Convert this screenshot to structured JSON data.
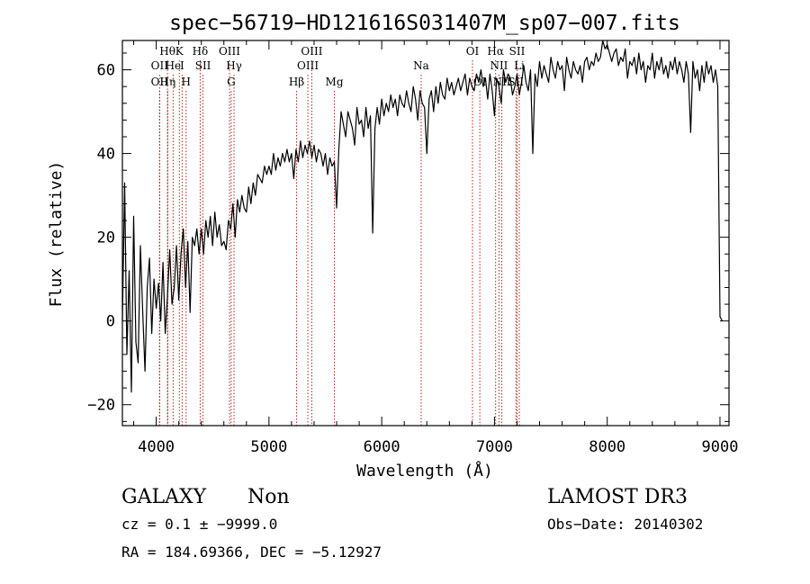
{
  "chart_data": {
    "type": "line",
    "title": "spec−56719−HD121616S031407M_sp07−007.fits",
    "xlabel": "Wavelength (Å)",
    "ylabel": "Flux (relative)",
    "xlim": [
      3700,
      9080
    ],
    "ylim": [
      -25,
      67
    ],
    "x_ticks": [
      4000,
      5000,
      6000,
      7000,
      8000,
      9000
    ],
    "y_ticks": [
      -20,
      0,
      20,
      40,
      60
    ],
    "series": [
      {
        "color": "#000000",
        "x": [
          3700,
          3720,
          3740,
          3760,
          3780,
          3800,
          3820,
          3840,
          3860,
          3880,
          3900,
          3920,
          3940,
          3960,
          3980,
          4000,
          4020,
          4040,
          4060,
          4080,
          4100,
          4120,
          4140,
          4160,
          4180,
          4200,
          4220,
          4240,
          4260,
          4280,
          4300,
          4320,
          4340,
          4360,
          4380,
          4400,
          4420,
          4440,
          4460,
          4480,
          4500,
          4520,
          4540,
          4560,
          4580,
          4600,
          4620,
          4640,
          4660,
          4680,
          4700,
          4720,
          4740,
          4760,
          4780,
          4800,
          4820,
          4840,
          4860,
          4880,
          4900,
          4920,
          4940,
          4960,
          4980,
          5000,
          5020,
          5040,
          5060,
          5080,
          5100,
          5120,
          5140,
          5160,
          5180,
          5200,
          5220,
          5240,
          5260,
          5280,
          5300,
          5320,
          5340,
          5360,
          5380,
          5400,
          5420,
          5440,
          5460,
          5480,
          5500,
          5520,
          5540,
          5560,
          5580,
          5600,
          5620,
          5640,
          5660,
          5680,
          5700,
          5720,
          5740,
          5760,
          5780,
          5800,
          5820,
          5840,
          5860,
          5880,
          5900,
          5920,
          5940,
          5960,
          5980,
          6000,
          6020,
          6040,
          6060,
          6080,
          6100,
          6120,
          6140,
          6160,
          6180,
          6200,
          6220,
          6240,
          6260,
          6280,
          6300,
          6320,
          6340,
          6360,
          6380,
          6400,
          6420,
          6440,
          6460,
          6480,
          6500,
          6520,
          6540,
          6560,
          6580,
          6600,
          6620,
          6640,
          6660,
          6680,
          6700,
          6720,
          6740,
          6760,
          6780,
          6800,
          6820,
          6840,
          6860,
          6880,
          6900,
          6920,
          6940,
          6960,
          6980,
          7000,
          7020,
          7040,
          7060,
          7080,
          7100,
          7120,
          7140,
          7160,
          7180,
          7200,
          7220,
          7240,
          7260,
          7280,
          7300,
          7320,
          7340,
          7360,
          7380,
          7400,
          7420,
          7440,
          7460,
          7480,
          7500,
          7520,
          7540,
          7560,
          7580,
          7600,
          7620,
          7640,
          7660,
          7680,
          7700,
          7720,
          7740,
          7760,
          7780,
          7800,
          7820,
          7840,
          7860,
          7880,
          7900,
          7920,
          7940,
          7960,
          7980,
          8000,
          8020,
          8040,
          8060,
          8080,
          8100,
          8120,
          8140,
          8160,
          8180,
          8200,
          8220,
          8240,
          8260,
          8280,
          8300,
          8320,
          8340,
          8360,
          8380,
          8400,
          8420,
          8440,
          8460,
          8480,
          8500,
          8520,
          8540,
          8560,
          8580,
          8600,
          8620,
          8640,
          8660,
          8680,
          8700,
          8720,
          8740,
          8760,
          8780,
          8800,
          8820,
          8840,
          8860,
          8880,
          8900,
          8920,
          8940,
          8960,
          8980,
          9000,
          9020
        ],
        "y": [
          0,
          33,
          -8,
          12,
          -17,
          25,
          -5,
          -10,
          18,
          2,
          -12,
          8,
          15,
          -3,
          10,
          3,
          9,
          0,
          14,
          -3,
          6,
          17,
          4,
          8,
          18,
          5,
          16,
          22,
          8,
          19,
          2,
          20,
          18,
          22,
          16,
          22,
          16,
          24,
          20,
          25,
          18,
          26,
          20,
          23,
          18,
          19,
          17,
          24,
          22,
          28,
          20,
          29,
          26,
          30,
          27,
          26,
          32,
          28,
          33,
          30,
          35,
          34,
          33,
          37,
          35,
          37,
          35,
          40,
          36,
          39,
          37,
          40,
          38,
          41,
          38,
          40,
          34,
          41,
          38,
          43,
          39,
          42,
          40,
          43,
          39,
          42,
          38,
          41,
          40,
          37,
          40,
          35,
          39,
          37,
          38,
          27,
          41,
          50,
          47,
          44,
          50,
          48,
          46,
          42,
          51,
          47,
          48,
          44,
          51,
          46,
          49,
          21,
          46,
          51,
          47,
          53,
          49,
          52,
          50,
          54,
          51,
          53,
          49,
          54,
          52,
          51,
          55,
          52,
          50,
          56,
          53,
          48,
          55,
          52,
          51,
          40,
          53,
          55,
          50,
          56,
          52,
          57,
          54,
          53,
          58,
          55,
          57,
          54,
          56,
          58,
          55,
          57,
          59,
          54,
          58,
          56,
          55,
          59,
          57,
          60,
          56,
          58,
          53,
          59,
          55,
          49,
          58,
          56,
          52,
          60,
          57,
          59,
          58,
          54,
          56,
          59,
          54,
          57,
          61,
          57,
          55,
          60,
          40,
          59,
          56,
          62,
          58,
          61,
          59,
          57,
          63,
          60,
          58,
          62,
          60,
          61,
          55,
          63,
          60,
          58,
          62,
          60,
          59,
          61,
          57,
          62,
          63,
          60,
          62,
          61,
          64,
          62,
          63,
          67,
          65,
          66,
          64,
          62,
          64,
          65,
          61,
          63,
          62,
          65,
          58,
          62,
          61,
          63,
          59,
          64,
          60,
          62,
          57,
          61,
          60,
          64,
          58,
          62,
          60,
          63,
          59,
          61,
          58,
          62,
          60,
          63,
          59,
          62,
          60,
          57,
          62,
          59,
          45,
          62,
          58,
          60,
          55,
          61,
          57,
          62,
          59,
          61,
          57,
          60,
          56,
          1,
          0
        ]
      }
    ],
    "line_markers": [
      {
        "x": 4030,
        "label": "OII",
        "row": 2
      },
      {
        "x": 4030,
        "label": "OII",
        "row": 3
      },
      {
        "x": 4100,
        "label": "Hθ",
        "row": 1
      },
      {
        "x": 4102,
        "label": "Hη",
        "row": 3
      },
      {
        "x": 4150,
        "label": "He",
        "row": 2
      },
      {
        "x": 4205,
        "label": "K",
        "row": 1
      },
      {
        "x": 4230,
        "label": "I",
        "row": 2
      },
      {
        "x": 4265,
        "label": "H",
        "row": 3
      },
      {
        "x": 4390,
        "label": "Hδ",
        "row": 1
      },
      {
        "x": 4415,
        "label": "SII",
        "row": 2
      },
      {
        "x": 4650,
        "label": "OIII",
        "row": 1
      },
      {
        "x": 4690,
        "label": "Hγ",
        "row": 2
      },
      {
        "x": 4665,
        "label": "G",
        "row": 3
      },
      {
        "x": 5245,
        "label": "Hβ",
        "row": 3
      },
      {
        "x": 5380,
        "label": "OIII",
        "row": 1
      },
      {
        "x": 5345,
        "label": "OIII",
        "row": 2
      },
      {
        "x": 5580,
        "label": "Mg",
        "row": 3
      },
      {
        "x": 6350,
        "label": "Na",
        "row": 2
      },
      {
        "x": 6805,
        "label": "OI",
        "row": 1
      },
      {
        "x": 6870,
        "label": "OI",
        "row": 3
      },
      {
        "x": 7010,
        "label": "Hα",
        "row": 1
      },
      {
        "x": 7040,
        "label": "NII",
        "row": 2
      },
      {
        "x": 7065,
        "label": "NII",
        "row": 3
      },
      {
        "x": 7200,
        "label": "SII",
        "row": 1
      },
      {
        "x": 7220,
        "label": "Li",
        "row": 2
      },
      {
        "x": 7190,
        "label": "SII",
        "row": 3
      }
    ]
  },
  "info": {
    "object_class": "GALAXY",
    "subclass": "Non",
    "survey": "LAMOST DR3",
    "redshift_line": "cz = 0.1 ± −9999.0",
    "obs_date_line": "Obs−Date: 20140302",
    "coords_line": "RA = 184.69366, DEC =  −5.12927"
  }
}
